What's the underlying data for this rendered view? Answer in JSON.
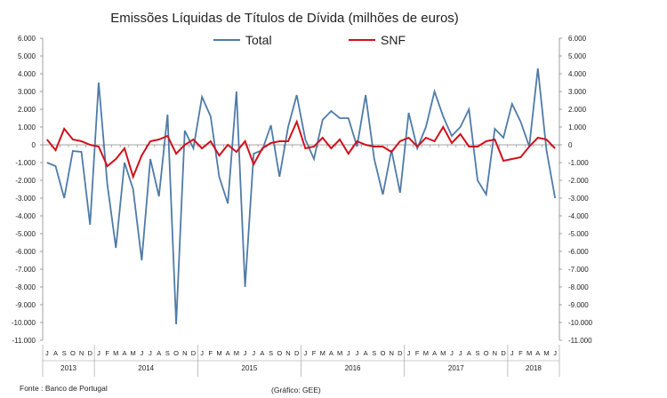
{
  "chart_data": {
    "type": "line",
    "title": "Emissões Líquidas de Títulos de Dívida (milhões de euros)",
    "source": "Fonte : Banco de Portugal",
    "credit": "(Gráfico: GEE)",
    "ylim": [
      -11000,
      6000
    ],
    "y_ticks": [
      "6.000",
      "5.000",
      "4.000",
      "3.000",
      "2.000",
      "1.000",
      "0",
      "-1.000",
      "-2.000",
      "-3.000",
      "-4.000",
      "-5.000",
      "-6.000",
      "-7.000",
      "-8.000",
      "-9.000",
      "-10.000",
      "-11.000"
    ],
    "y_ticks_right": [
      "6.000",
      "5.000",
      "4.000",
      "3.000",
      "2.000",
      "1.000",
      "0",
      "-1.000",
      "-2.000",
      "-3.000",
      "-4.000",
      "-5.000",
      "-6.000",
      "-7.000",
      "-8.000",
      "-9.000",
      "-10.000",
      "-11.000"
    ],
    "legend_position": "top",
    "x_month_labels": [
      "J",
      "A",
      "S",
      "O",
      "N",
      "D",
      "J",
      "F",
      "M",
      "A",
      "M",
      "J",
      "J",
      "A",
      "S",
      "O",
      "N",
      "D",
      "J",
      "F",
      "M",
      "A",
      "M",
      "J",
      "J",
      "A",
      "S",
      "O",
      "N",
      "D",
      "J",
      "F",
      "M",
      "A",
      "M",
      "J",
      "J",
      "A",
      "S",
      "O",
      "N",
      "D",
      "J",
      "F",
      "M",
      "A",
      "M",
      "J",
      "J",
      "A",
      "S",
      "O",
      "N",
      "D",
      "J",
      "F",
      "M",
      "A",
      "M",
      "J"
    ],
    "year_groups": [
      {
        "label": "2013",
        "count": 6
      },
      {
        "label": "2014",
        "count": 12
      },
      {
        "label": "2015",
        "count": 12
      },
      {
        "label": "2016",
        "count": 12
      },
      {
        "label": "2017",
        "count": 12
      },
      {
        "label": "2018",
        "count": 6
      }
    ],
    "series": [
      {
        "name": "Total",
        "color": "#4f7ba8",
        "values": [
          -1000,
          -1200,
          -3000,
          -350,
          -400,
          -4500,
          3500,
          -2200,
          -5800,
          -1000,
          -2500,
          -6500,
          -800,
          -2900,
          1700,
          -10100,
          800,
          -200,
          2700,
          1600,
          -1800,
          -3300,
          3000,
          -8000,
          -500,
          -300,
          1100,
          -1800,
          1000,
          2800,
          300,
          -800,
          1400,
          1900,
          1500,
          1500,
          -100,
          2800,
          -800,
          -2800,
          -300,
          -2700,
          1800,
          -200,
          1000,
          3000,
          1600,
          500,
          1000,
          2000,
          -2000,
          -2800,
          900,
          400,
          2300,
          1300,
          -100,
          4300,
          -300,
          -3000
        ]
      },
      {
        "name": "SNF",
        "color": "#d0111b",
        "values": [
          300,
          -300,
          900,
          300,
          200,
          0,
          -100,
          -1200,
          -800,
          -200,
          -1800,
          -600,
          200,
          300,
          500,
          -500,
          0,
          300,
          -200,
          200,
          -600,
          0,
          -400,
          200,
          -1100,
          -200,
          100,
          200,
          200,
          1300,
          -200,
          -100,
          400,
          -200,
          300,
          -500,
          200,
          0,
          -100,
          -100,
          -400,
          200,
          400,
          -100,
          400,
          200,
          1000,
          100,
          600,
          -100,
          -100,
          200,
          300,
          -900,
          -800,
          -700,
          -100,
          400,
          300,
          -200
        ]
      }
    ]
  }
}
